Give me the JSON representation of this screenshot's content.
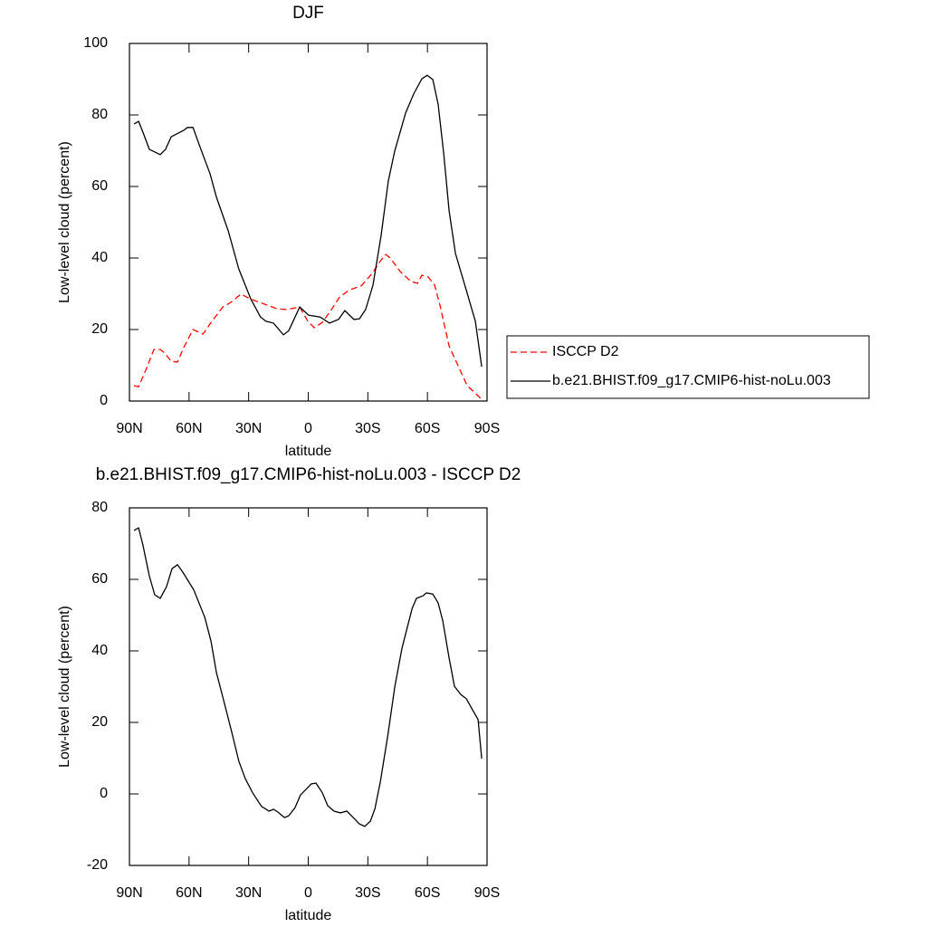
{
  "chart_data": [
    {
      "type": "line",
      "title": "DJF",
      "x_label": "latitude",
      "y_label": "Low-level cloud (percent)",
      "xlim": [
        90,
        -90
      ],
      "xticks": [
        {
          "value": 90,
          "label": "90N"
        },
        {
          "value": 60,
          "label": "60N"
        },
        {
          "value": 30,
          "label": "30N"
        },
        0,
        {
          "value": -30,
          "label": "30S"
        },
        {
          "value": -60,
          "label": "60S"
        },
        {
          "value": -90,
          "label": "90S"
        }
      ],
      "ylim": [
        0,
        100
      ],
      "yticks": [
        0,
        20,
        40,
        60,
        80,
        100
      ],
      "legend": "right",
      "series": [
        {
          "name": "ISCCP D2",
          "color": "#ff0000",
          "dashed": true,
          "x": [
            87.7,
            85.4,
            81.8,
            77.7,
            74.5,
            72.2,
            69,
            65.8,
            62.7,
            58,
            53,
            48.9,
            43,
            38.9,
            33.9,
            29.4,
            23,
            15.7,
            10.7,
            4.3,
            0.2,
            -3,
            -7.1,
            -11.7,
            -15.8,
            -20.8,
            -26.7,
            -32.2,
            -36.3,
            -39,
            -41.3,
            -46.3,
            -51.8,
            -55,
            -57.2,
            -60.4,
            -63.6,
            -66.3,
            -70.9,
            -75.4,
            -80,
            -84.5,
            -88.2
          ],
          "values": [
            4.3,
            4,
            8.6,
            14.4,
            14.4,
            13.4,
            11.1,
            10.9,
            14.9,
            20,
            18.7,
            22,
            26.3,
            27.6,
            29.9,
            28.6,
            27.3,
            25.8,
            25.6,
            26.3,
            22.3,
            20.5,
            22,
            25.6,
            29.1,
            31.1,
            32.2,
            35.7,
            39.2,
            41,
            40,
            36.2,
            33.4,
            32.9,
            35.2,
            34.7,
            32.4,
            26.8,
            15.4,
            9.9,
            4.3,
            2,
            0
          ]
        },
        {
          "name": "b.e21.BHIST.f09_g17.CMIP6-hist-noLu.003",
          "color": "#000000",
          "dashed": false,
          "x": [
            87.7,
            85.4,
            83.2,
            80,
            74.5,
            71.8,
            69,
            62.7,
            60.8,
            58,
            54.5,
            49.4,
            46.2,
            40.3,
            35,
            29,
            24,
            21.3,
            17.5,
            12.5,
            9.8,
            4.3,
            -0.2,
            -6,
            -10.7,
            -15.2,
            -18.4,
            -23,
            -25.8,
            -28.9,
            -32.6,
            -36.7,
            -40.3,
            -43.5,
            -49,
            -53,
            -57.2,
            -59.9,
            -62.7,
            -65.4,
            -68.2,
            -70.9,
            -74.1,
            -79.6,
            -84.1,
            -87.3
          ],
          "values": [
            77.5,
            78.2,
            75.2,
            70.4,
            68.9,
            70.4,
            73.9,
            75.7,
            76.5,
            76.5,
            71.1,
            63.5,
            57,
            47.6,
            37,
            28.6,
            23.5,
            22.3,
            21.8,
            18.5,
            19.7,
            26.3,
            24,
            23.5,
            21.8,
            22.8,
            25.3,
            22.8,
            23,
            25.6,
            32.4,
            46.3,
            61.5,
            69.9,
            80.5,
            85.8,
            90.1,
            91.1,
            89.9,
            83,
            69.1,
            53.2,
            41.3,
            30.9,
            22.3,
            9.6
          ]
        }
      ]
    },
    {
      "type": "line",
      "title": "b.e21.BHIST.f09_g17.CMIP6-hist-noLu.003 - ISCCP D2",
      "x_label": "latitude",
      "y_label": "Low-level cloud (percent)",
      "xlim": [
        90,
        -90
      ],
      "xticks": [
        {
          "value": 90,
          "label": "90N"
        },
        {
          "value": 60,
          "label": "60N"
        },
        {
          "value": 30,
          "label": "30N"
        },
        0,
        {
          "value": -30,
          "label": "30S"
        },
        {
          "value": -60,
          "label": "60S"
        },
        {
          "value": -90,
          "label": "90S"
        }
      ],
      "ylim": [
        -20,
        80
      ],
      "yticks": [
        -20,
        0,
        20,
        40,
        60,
        80
      ],
      "series": [
        {
          "color": "#000000",
          "dashed": false,
          "x": [
            87.7,
            85.4,
            83.2,
            80,
            77.3,
            74.5,
            71.3,
            68.6,
            65.8,
            63.1,
            57.6,
            52.1,
            49,
            46.2,
            43,
            38.9,
            34.9,
            31.7,
            28,
            23.5,
            19.8,
            17.5,
            15.2,
            12,
            9.8,
            6.6,
            3.9,
            -1.6,
            -3.9,
            -7.1,
            -9.8,
            -13,
            -16.2,
            -19.4,
            -23,
            -25.8,
            -28.5,
            -31.3,
            -33.6,
            -36.3,
            -40,
            -43.6,
            -47.2,
            -52.3,
            -54.5,
            -57.7,
            -59.5,
            -62.7,
            -65.4,
            -67.7,
            -70.9,
            -73.6,
            -76.8,
            -79.6,
            -82.7,
            -85.5,
            -87.3
          ],
          "values": [
            73.7,
            74.4,
            69.6,
            61,
            55.7,
            54.7,
            58,
            63,
            64.1,
            62,
            57,
            49.4,
            42.8,
            33.9,
            27.1,
            18.2,
            9.1,
            4.3,
            0.3,
            -3.5,
            -4.8,
            -4.3,
            -5.1,
            -6.6,
            -6.1,
            -3.8,
            -0.3,
            2.8,
            3,
            0.3,
            -3.3,
            -4.8,
            -5.3,
            -4.8,
            -6.8,
            -8.4,
            -9.1,
            -7.6,
            -4.1,
            3.5,
            16.2,
            30.1,
            40.8,
            51.9,
            54.7,
            55.4,
            56.2,
            55.9,
            53.4,
            48.4,
            38,
            30.1,
            27.8,
            26.6,
            23.5,
            20.8,
            9.9
          ]
        }
      ]
    }
  ]
}
